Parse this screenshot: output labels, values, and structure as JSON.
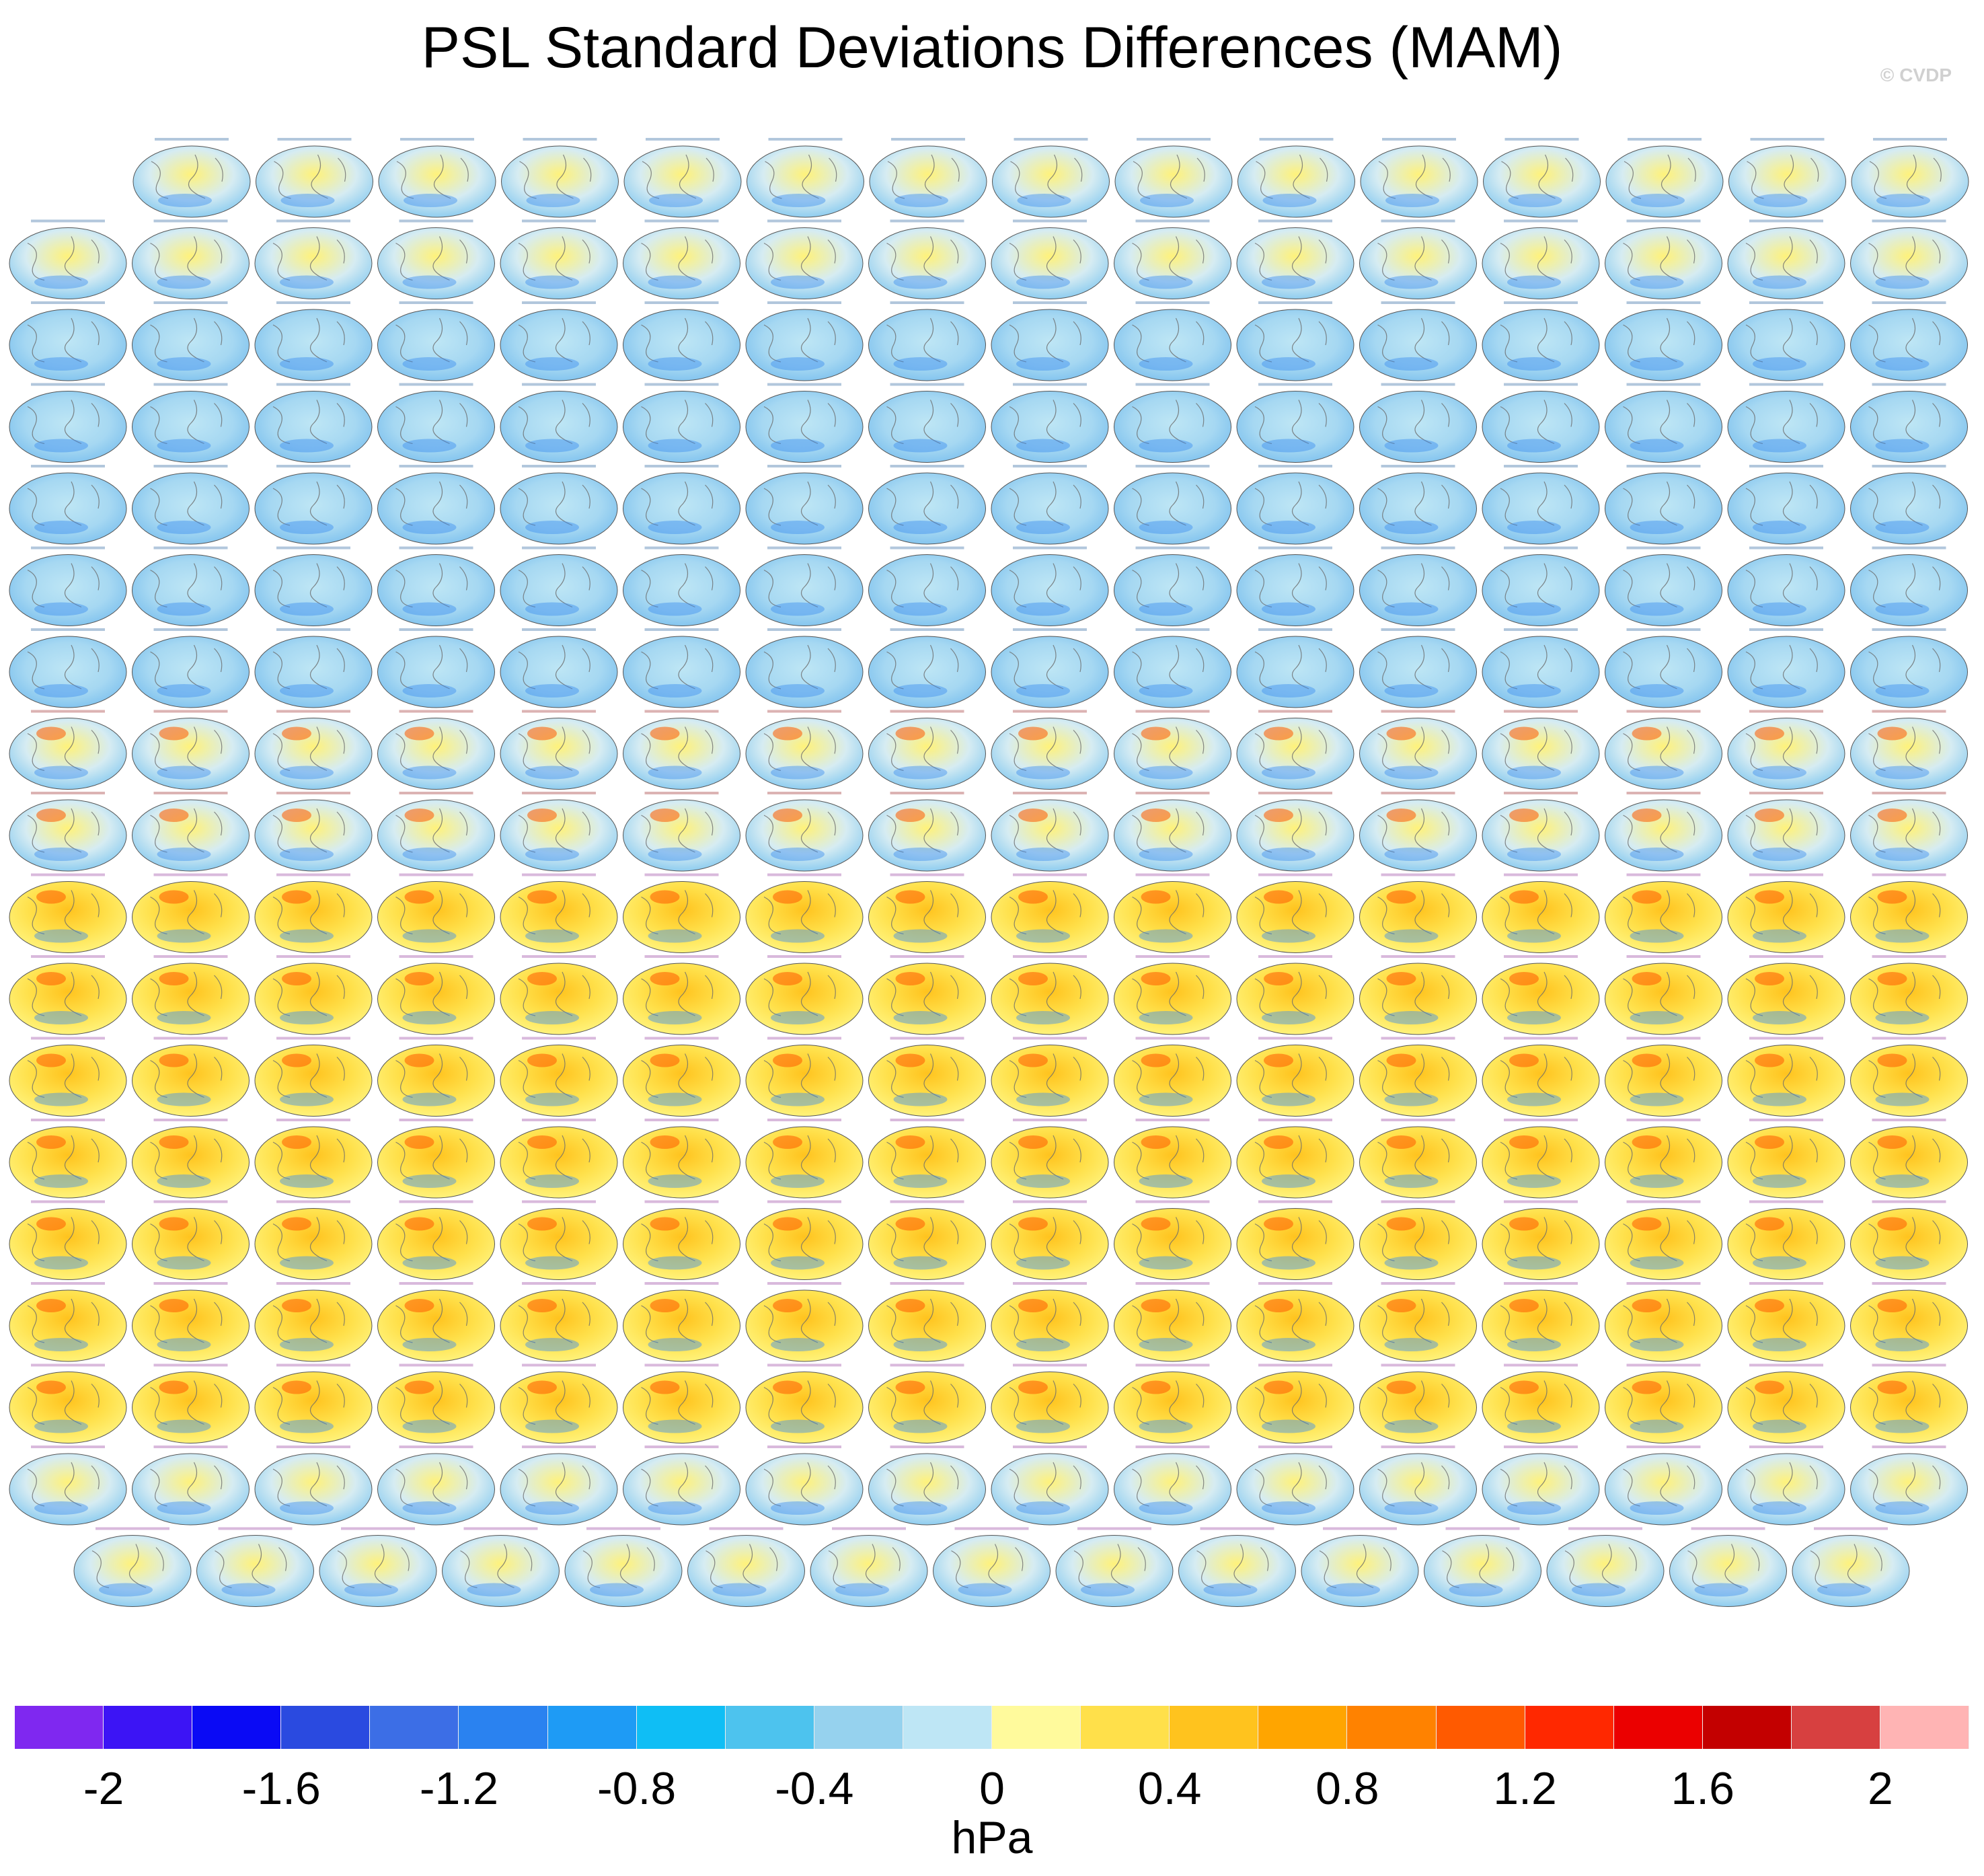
{
  "title": "PSL Standard Deviations Differences (MAM)",
  "watermark": "© CVDP",
  "panels": {
    "projection": "global-ellipse-map",
    "rows": [
      {
        "count": 15,
        "family": "ACCESS"
      },
      {
        "count": 16,
        "family": "ACCESS"
      },
      {
        "count": 16,
        "family": "ACCESS/CanESM2"
      },
      {
        "count": 16,
        "family": "CanESM2"
      },
      {
        "count": 16,
        "family": "CanESM2"
      },
      {
        "count": 16,
        "family": "CanESM2"
      },
      {
        "count": 16,
        "family": "CanESM2"
      },
      {
        "count": 16,
        "family": "CESM1"
      },
      {
        "count": 16,
        "family": "CESM1"
      },
      {
        "count": 16,
        "family": "CESM1/CESM2"
      },
      {
        "count": 16,
        "family": "CESM2"
      },
      {
        "count": 16,
        "family": "CESM2"
      },
      {
        "count": 16,
        "family": "CESM2"
      },
      {
        "count": 16,
        "family": "CESM2"
      },
      {
        "count": 16,
        "family": "CESM2"
      },
      {
        "count": 16,
        "family": "CESM2"
      },
      {
        "count": 16,
        "family": "CSIRO"
      },
      {
        "count": 15,
        "family": "CSIRO"
      }
    ]
  },
  "colorbar": {
    "units": "hPa",
    "colors": [
      "#7f28f0",
      "#3c14f5",
      "#0a0af5",
      "#2a4ae0",
      "#3c6ee6",
      "#2a82f0",
      "#1e9bf5",
      "#0fbef5",
      "#4dc3ee",
      "#96d2ee",
      "#bee6f5",
      "#fffa9c",
      "#ffe04a",
      "#ffc31e",
      "#ffa500",
      "#ff8200",
      "#ff5a00",
      "#ff2800",
      "#eb0000",
      "#c30000",
      "#d74040",
      "#ffb4b4"
    ],
    "tick_labels": [
      "-2",
      "-1.6",
      "-1.2",
      "-0.8",
      "-0.4",
      "0",
      "0.4",
      "0.8",
      "1.2",
      "1.6",
      "2"
    ]
  }
}
